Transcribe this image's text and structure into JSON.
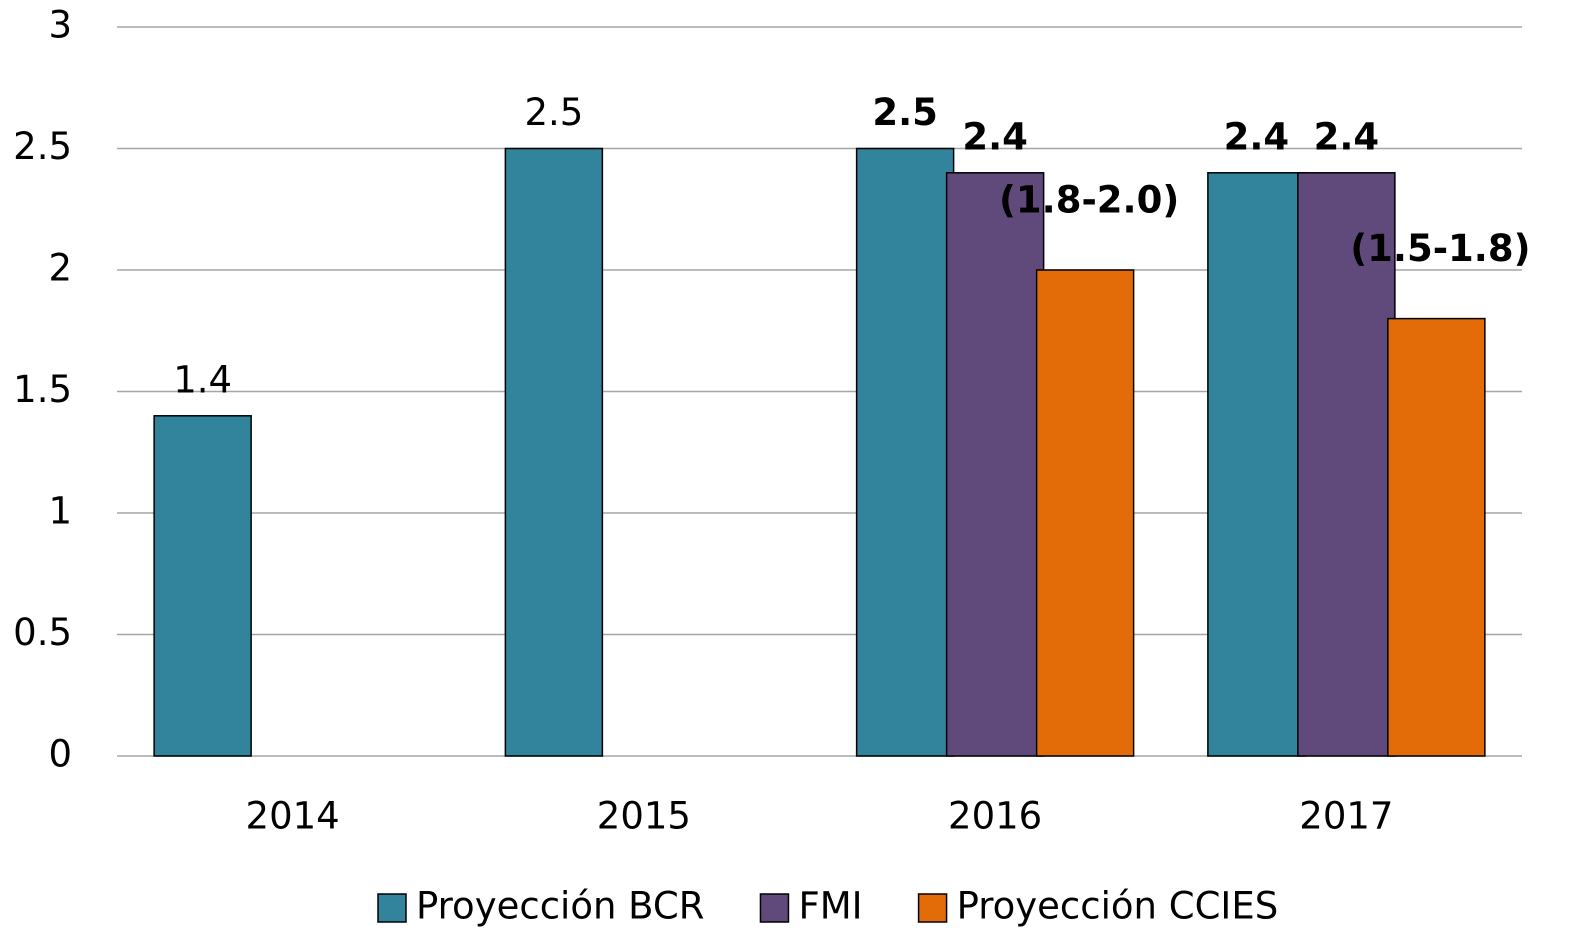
{
  "chart_data": {
    "type": "bar",
    "categories": [
      "2014",
      "2015",
      "2016",
      "2017"
    ],
    "series": [
      {
        "name": "Proyección BCR",
        "color": "#31849b",
        "values": [
          1.4,
          2.5,
          2.5,
          2.4
        ],
        "label_weight": [
          "normal",
          "normal",
          "bold",
          "bold"
        ],
        "label_color": "#000000"
      },
      {
        "name": "FMI",
        "color": "#604a7b",
        "values": [
          null,
          null,
          2.4,
          2.4
        ],
        "label_weight": [
          null,
          null,
          "bold",
          "bold"
        ],
        "label_color": "#000000"
      },
      {
        "name": "Proyección CCIES",
        "color": "#e36c09",
        "values": [
          null,
          null,
          2.0,
          1.8
        ],
        "value_labels": [
          null,
          null,
          "(1.8-2.0)",
          "(1.5-1.8)"
        ],
        "label_weight": [
          null,
          null,
          "bold",
          "bold"
        ],
        "label_color": "#e36c09"
      }
    ],
    "ylim": [
      0,
      3
    ],
    "yticks": [
      0,
      0.5,
      1,
      1.5,
      2,
      2.5,
      3
    ],
    "grid": true,
    "legend": "bottom"
  }
}
